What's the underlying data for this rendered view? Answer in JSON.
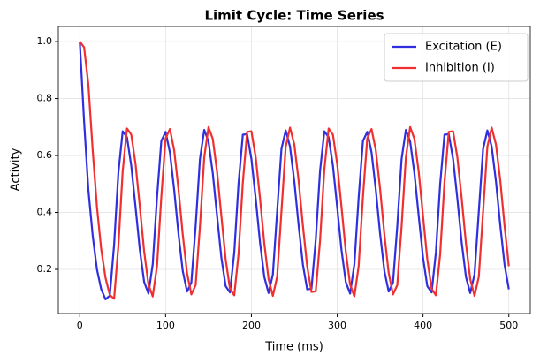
{
  "chart_data": {
    "type": "line",
    "title": "Limit Cycle: Time Series",
    "xlabel": "Time (ms)",
    "ylabel": "Activity",
    "x": [
      0,
      5,
      10,
      15,
      20,
      25,
      30,
      35,
      40,
      45,
      50,
      55,
      60,
      65,
      70,
      75,
      80,
      85,
      90,
      95,
      100,
      105,
      110,
      115,
      120,
      125,
      130,
      135,
      140,
      145,
      150,
      155,
      160,
      165,
      170,
      175,
      180,
      185,
      190,
      195,
      200,
      205,
      210,
      215,
      220,
      225,
      230,
      235,
      240,
      245,
      250,
      255,
      260,
      265,
      270,
      275,
      280,
      285,
      290,
      295,
      300,
      305,
      310,
      315,
      320,
      325,
      330,
      335,
      340,
      345,
      350,
      355,
      360,
      365,
      370,
      375,
      380,
      385,
      390,
      395,
      400,
      405,
      410,
      415,
      420,
      425,
      430,
      435,
      440,
      445,
      450,
      455,
      460,
      465,
      470,
      475,
      480,
      485,
      490,
      495,
      500
    ],
    "series": [
      {
        "name": "Excitation (E)",
        "color": "#2f2fe0",
        "values": [
          1.0,
          0.72,
          0.48,
          0.32,
          0.2,
          0.13,
          0.095,
          0.108,
          0.287,
          0.54,
          0.685,
          0.664,
          0.564,
          0.418,
          0.268,
          0.156,
          0.115,
          0.218,
          0.453,
          0.651,
          0.683,
          0.611,
          0.479,
          0.325,
          0.194,
          0.122,
          0.154,
          0.352,
          0.587,
          0.69,
          0.649,
          0.537,
          0.387,
          0.241,
          0.141,
          0.119,
          0.259,
          0.501,
          0.673,
          0.675,
          0.588,
          0.449,
          0.296,
          0.174,
          0.117,
          0.182,
          0.403,
          0.623,
          0.688,
          0.631,
          0.509,
          0.356,
          0.217,
          0.13,
          0.132,
          0.304,
          0.546,
          0.685,
          0.664,
          0.564,
          0.418,
          0.268,
          0.156,
          0.115,
          0.218,
          0.453,
          0.651,
          0.683,
          0.611,
          0.479,
          0.325,
          0.194,
          0.122,
          0.154,
          0.352,
          0.587,
          0.69,
          0.649,
          0.537,
          0.387,
          0.241,
          0.141,
          0.119,
          0.259,
          0.501,
          0.673,
          0.675,
          0.588,
          0.449,
          0.296,
          0.174,
          0.117,
          0.182,
          0.403,
          0.623,
          0.688,
          0.631,
          0.509,
          0.356,
          0.217,
          0.13
        ]
      },
      {
        "name": "Inhibition (I)",
        "color": "#f03030",
        "values": [
          1.0,
          0.98,
          0.85,
          0.62,
          0.42,
          0.27,
          0.17,
          0.11,
          0.097,
          0.283,
          0.545,
          0.695,
          0.673,
          0.57,
          0.419,
          0.263,
          0.147,
          0.105,
          0.212,
          0.455,
          0.66,
          0.693,
          0.618,
          0.482,
          0.322,
          0.187,
          0.112,
          0.145,
          0.35,
          0.593,
          0.7,
          0.658,
          0.542,
          0.387,
          0.235,
          0.132,
          0.109,
          0.254,
          0.505,
          0.683,
          0.685,
          0.594,
          0.451,
          0.292,
          0.166,
          0.107,
          0.174,
          0.403,
          0.631,
          0.698,
          0.639,
          0.513,
          0.354,
          0.211,
          0.121,
          0.123,
          0.301,
          0.551,
          0.695,
          0.673,
          0.57,
          0.419,
          0.263,
          0.147,
          0.105,
          0.212,
          0.455,
          0.66,
          0.693,
          0.618,
          0.482,
          0.322,
          0.187,
          0.112,
          0.145,
          0.35,
          0.593,
          0.7,
          0.658,
          0.542,
          0.387,
          0.235,
          0.132,
          0.109,
          0.254,
          0.505,
          0.683,
          0.685,
          0.594,
          0.451,
          0.292,
          0.166,
          0.107,
          0.174,
          0.403,
          0.631,
          0.698,
          0.639,
          0.513,
          0.354,
          0.211
        ]
      }
    ],
    "xlim": [
      -25,
      525
    ],
    "xticks": [
      0,
      100,
      200,
      300,
      400,
      500
    ],
    "ylim": [
      0.045,
      1.053
    ],
    "yticks": [
      0.2,
      0.4,
      0.6,
      0.8,
      {
        "value": 1,
        "label": "1.0"
      }
    ],
    "grid": true,
    "legend": "upper right"
  }
}
